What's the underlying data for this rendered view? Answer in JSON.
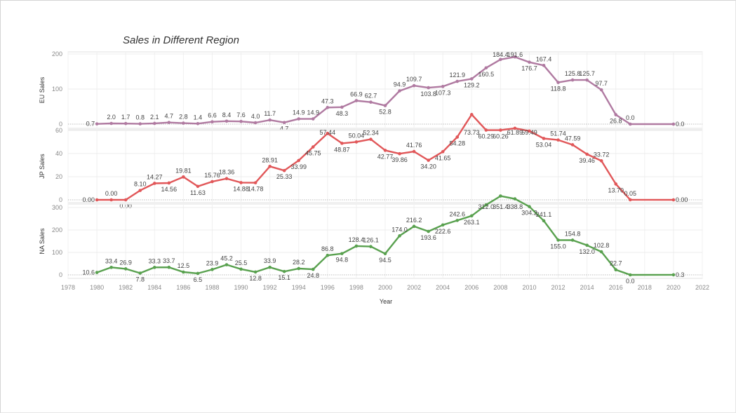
{
  "colors": {
    "eu": "#b07aa1",
    "jp": "#e15759",
    "na": "#59a14f"
  },
  "chart_data": {
    "type": "line",
    "title": "Sales in Different Region",
    "xlabel": "Year",
    "x": [
      1980,
      1981,
      1982,
      1983,
      1984,
      1985,
      1986,
      1987,
      1988,
      1989,
      1990,
      1991,
      1992,
      1993,
      1994,
      1995,
      1996,
      1997,
      1998,
      1999,
      2000,
      2001,
      2002,
      2003,
      2004,
      2005,
      2006,
      2007,
      2008,
      2009,
      2010,
      2011,
      2012,
      2013,
      2014,
      2015,
      2016,
      2017,
      2020
    ],
    "xticks": [
      "1978",
      "1980",
      "1982",
      "1984",
      "1986",
      "1988",
      "1990",
      "1992",
      "1994",
      "1996",
      "1998",
      "2000",
      "2002",
      "2004",
      "2006",
      "2008",
      "2010",
      "2012",
      "2014",
      "2016",
      "2018",
      "2020",
      "2022"
    ],
    "xlim": [
      1978,
      2022
    ],
    "grid": true,
    "panels": [
      {
        "name": "EU Sales",
        "ylabel": "EU Sales",
        "ylim": [
          0,
          200
        ],
        "yticks": [
          "0",
          "100",
          "200"
        ],
        "values": [
          0.7,
          2.0,
          1.7,
          0.8,
          2.1,
          4.7,
          2.8,
          1.4,
          6.6,
          8.4,
          7.6,
          4.0,
          11.7,
          4.7,
          14.9,
          14.9,
          47.3,
          48.3,
          66.9,
          62.7,
          52.8,
          94.9,
          109.7,
          103.8,
          107.3,
          121.9,
          129.2,
          160.5,
          184.4,
          191.6,
          176.7,
          167.4,
          118.8,
          125.8,
          125.7,
          97.7,
          26.8,
          0.0,
          0.0
        ],
        "labels": [
          "0.7",
          "2.0",
          "1.7",
          "0.8",
          "2.1",
          "4.7",
          "2.8",
          "1.4",
          "6.6",
          "8.4",
          "7.6",
          "4.0",
          "11.7",
          "4.7",
          "14.9",
          "14.9",
          "47.3",
          "48.3",
          "66.9",
          "62.7",
          "52.8",
          "94.9",
          "109.7",
          "103.8",
          "107.3",
          "121.9",
          "129.2",
          "160.5",
          "184.4",
          "191.6",
          "176.7",
          "167.4",
          "118.8",
          "125.8",
          "125.7",
          "97.7",
          "26.8",
          "0.0",
          "0.0"
        ]
      },
      {
        "name": "JP Sales",
        "ylabel": "JP Sales",
        "ylim": [
          0,
          75
        ],
        "yticks": [
          "0",
          "20",
          "40",
          "60"
        ],
        "values": [
          0.0,
          0.0,
          0.0,
          8.1,
          14.27,
          14.56,
          19.81,
          11.63,
          15.76,
          18.36,
          14.88,
          14.78,
          28.91,
          25.33,
          33.99,
          45.75,
          57.44,
          48.87,
          50.04,
          52.34,
          42.77,
          39.86,
          41.76,
          34.2,
          41.65,
          54.28,
          73.73,
          60.29,
          60.26,
          61.89,
          59.49,
          53.04,
          51.74,
          47.59,
          39.46,
          33.72,
          13.7,
          0.05,
          0.0
        ],
        "labels": [
          "0.00",
          "0.00",
          "0.00",
          "8.10",
          "14.27",
          "14.56",
          "19.81",
          "11.63",
          "15.76",
          "18.36",
          "14.88",
          "14.78",
          "28.91",
          "25.33",
          "33.99",
          "45.75",
          "57.44",
          "48.87",
          "50.04",
          "52.34",
          "42.77",
          "39.86",
          "41.76",
          "34.20",
          "41.65",
          "54.28",
          "73.73",
          "60.29",
          "60.26",
          "61.89",
          "59.49",
          "53.04",
          "51.74",
          "47.59",
          "39.46",
          "33.72",
          "13.70",
          "0.05",
          "0.00"
        ]
      },
      {
        "name": "NA Sales",
        "ylabel": "NA Sales",
        "ylim": [
          0,
          350
        ],
        "yticks": [
          "0",
          "100",
          "200",
          "300"
        ],
        "values": [
          10.6,
          33.4,
          26.9,
          7.8,
          33.3,
          33.7,
          12.5,
          6.5,
          23.9,
          45.2,
          25.5,
          12.8,
          33.9,
          15.1,
          28.2,
          24.8,
          86.8,
          94.8,
          128.4,
          126.1,
          94.5,
          174.0,
          216.2,
          193.6,
          222.6,
          242.6,
          263.1,
          312.0,
          351.4,
          338.8,
          304.2,
          241.1,
          155.0,
          154.8,
          132.0,
          102.8,
          22.7,
          0.0,
          0.3
        ],
        "labels": [
          "10.6",
          "33.4",
          "26.9",
          "7.8",
          "33.3",
          "33.7",
          "12.5",
          "6.5",
          "23.9",
          "45.2",
          "25.5",
          "12.8",
          "33.9",
          "15.1",
          "28.2",
          "24.8",
          "86.8",
          "94.8",
          "128.4",
          "126.1",
          "94.5",
          "174.0",
          "216.2",
          "193.6",
          "222.6",
          "242.6",
          "263.1",
          "312.0",
          "351.4",
          "338.8",
          "304.2",
          "241.1",
          "155.0",
          "154.8",
          "132.0",
          "102.8",
          "22.7",
          "0.0",
          "0.3"
        ]
      }
    ]
  }
}
